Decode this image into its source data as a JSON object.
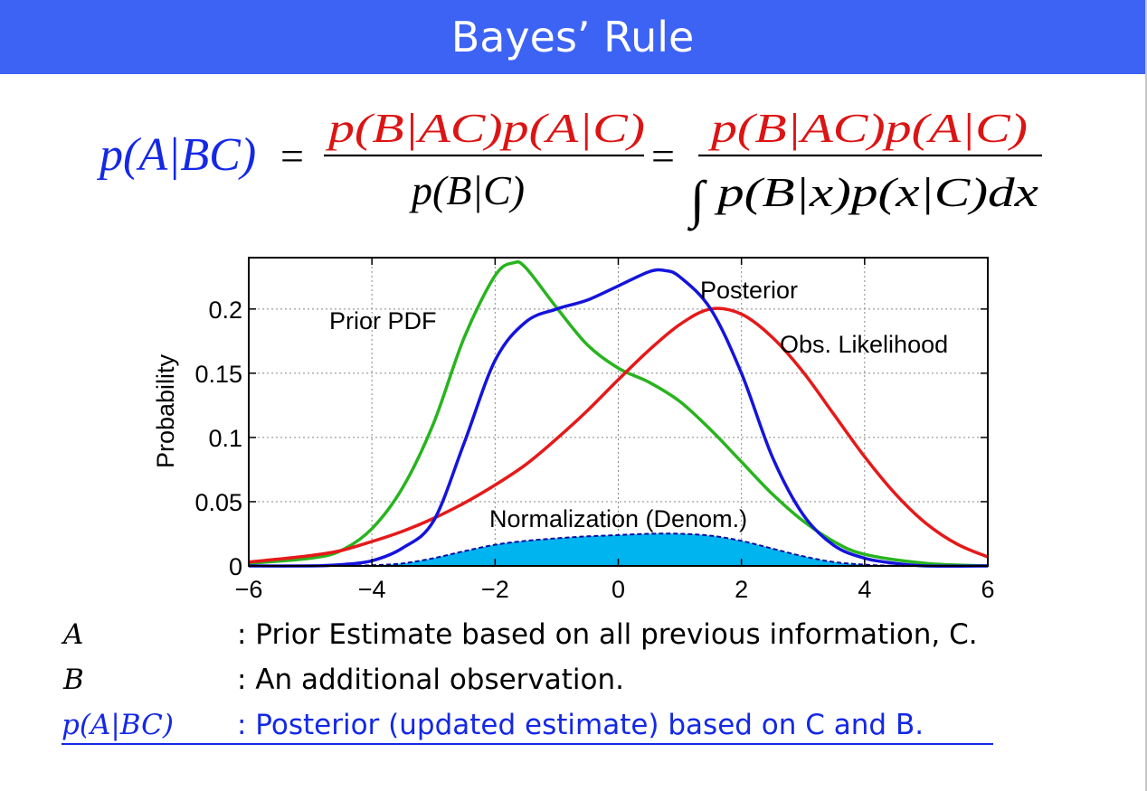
{
  "slide": {
    "title": "Bayes’ Rule",
    "formula": {
      "lhs": "p(A|BC)",
      "equals": "=",
      "numerator1": "p(B|AC)p(A|C)",
      "denominator1": "p(B|C)",
      "numerator2": "p(B|AC)p(A|C)",
      "integral": "∫",
      "denominator2": "p(B|x)p(x|C)dx"
    },
    "definitions": [
      {
        "symbol": "A",
        "text": ": Prior Estimate based on all previous information, C."
      },
      {
        "symbol": "B",
        "text": ": An additional observation."
      },
      {
        "symbol": "p(A|BC)",
        "text": ": Posterior (updated estimate) based on C and B."
      }
    ]
  },
  "colors": {
    "title_bar": "#3d63f5",
    "blue": "#1428e6",
    "red": "#dc1414",
    "green": "#1e9614",
    "prior": "#28b41e",
    "likelihood": "#e61919",
    "posterior": "#1414dc",
    "normalization_fill": "#00b4f0",
    "normalization_edge": "#0a0aa0"
  },
  "chart_data": {
    "type": "line",
    "ylabel": "Probability",
    "xlim": [
      -6,
      6
    ],
    "ylim": [
      0,
      0.24
    ],
    "x_ticks": [
      "−6",
      "−4",
      "−2",
      "0",
      "2",
      "4",
      "6"
    ],
    "y_ticks": [
      "0",
      "0.05",
      "0.1",
      "0.15",
      "0.2"
    ],
    "grid": true,
    "series": [
      {
        "name": "Prior PDF",
        "color": "#28b41e",
        "x": [
          -6,
          -5,
          -4.5,
          -4,
          -3.5,
          -3,
          -2.5,
          -2,
          -1.7,
          -1.5,
          -1,
          -0.5,
          0,
          0.5,
          1,
          1.5,
          2,
          2.5,
          3,
          3.5,
          4,
          5,
          6
        ],
        "y": [
          0.002,
          0.006,
          0.012,
          0.029,
          0.061,
          0.111,
          0.178,
          0.226,
          0.236,
          0.232,
          0.201,
          0.172,
          0.154,
          0.143,
          0.128,
          0.106,
          0.081,
          0.056,
          0.035,
          0.019,
          0.009,
          0.002,
          0.0
        ]
      },
      {
        "name": "Obs. Likelihood",
        "color": "#e61919",
        "x": [
          -6,
          -5,
          -4.5,
          -4,
          -3.5,
          -3,
          -2.5,
          -2,
          -1.5,
          -1,
          -0.5,
          0,
          0.5,
          1,
          1.5,
          2,
          2.5,
          3,
          3.5,
          4,
          4.5,
          5,
          5.5,
          6
        ],
        "y": [
          0.003,
          0.008,
          0.012,
          0.019,
          0.027,
          0.037,
          0.049,
          0.063,
          0.079,
          0.099,
          0.121,
          0.145,
          0.168,
          0.188,
          0.2,
          0.196,
          0.178,
          0.151,
          0.118,
          0.085,
          0.056,
          0.033,
          0.017,
          0.007
        ]
      },
      {
        "name": "Posterior",
        "color": "#1414dc",
        "x": [
          -6,
          -5,
          -4.5,
          -4,
          -3.5,
          -3,
          -2.5,
          -2,
          -1.5,
          -1,
          -0.5,
          0,
          0.5,
          0.75,
          1,
          1.5,
          2,
          2.5,
          3,
          3.5,
          4,
          4.5,
          5,
          6
        ],
        "y": [
          0.0,
          0.0,
          0.001,
          0.004,
          0.014,
          0.035,
          0.096,
          0.16,
          0.19,
          0.2,
          0.207,
          0.218,
          0.229,
          0.23,
          0.225,
          0.2,
          0.15,
          0.085,
          0.04,
          0.016,
          0.006,
          0.002,
          0.0,
          0.0
        ]
      },
      {
        "name": "Normalization (Denom.)",
        "color": "#00b4f0",
        "x": [
          -6,
          -5,
          -4.5,
          -4,
          -3.5,
          -3,
          -2.5,
          -2,
          -1.5,
          -1,
          -0.5,
          0,
          0.5,
          1,
          1.5,
          2,
          2.5,
          3,
          3.5,
          4,
          4.5,
          5,
          6
        ],
        "y": [
          0.0,
          0.0,
          0.0,
          0.0005,
          0.002,
          0.006,
          0.0115,
          0.0165,
          0.0195,
          0.0215,
          0.023,
          0.024,
          0.025,
          0.025,
          0.0235,
          0.0195,
          0.0135,
          0.0075,
          0.003,
          0.001,
          0.0,
          0.0,
          0.0
        ]
      }
    ],
    "annotations": [
      {
        "text": "Prior PDF"
      },
      {
        "text": "Posterior"
      },
      {
        "text": "Obs. Likelihood"
      },
      {
        "text": "Normalization (Denom.)"
      }
    ]
  }
}
